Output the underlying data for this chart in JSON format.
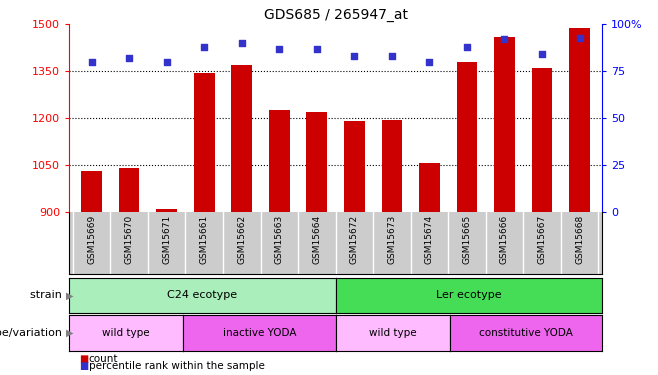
{
  "title": "GDS685 / 265947_at",
  "samples": [
    "GSM15669",
    "GSM15670",
    "GSM15671",
    "GSM15661",
    "GSM15662",
    "GSM15663",
    "GSM15664",
    "GSM15672",
    "GSM15673",
    "GSM15674",
    "GSM15665",
    "GSM15666",
    "GSM15667",
    "GSM15668"
  ],
  "counts": [
    1030,
    1040,
    910,
    1345,
    1370,
    1225,
    1220,
    1190,
    1195,
    1055,
    1380,
    1460,
    1360,
    1490
  ],
  "percentile_ranks": [
    80,
    82,
    80,
    88,
    90,
    87,
    87,
    83,
    83,
    80,
    88,
    92,
    84,
    93
  ],
  "ymin": 900,
  "ymax": 1500,
  "yticks_left": [
    900,
    1050,
    1200,
    1350,
    1500
  ],
  "yticks_right_vals": [
    0,
    25,
    50,
    75,
    100
  ],
  "yticks_right_labels": [
    "0",
    "25",
    "50",
    "75",
    "100%"
  ],
  "bar_color": "#cc0000",
  "dot_color": "#3333cc",
  "strain_groups": [
    {
      "label": "C24 ecotype",
      "start": 0,
      "end": 7,
      "color": "#aaeebb"
    },
    {
      "label": "Ler ecotype",
      "start": 7,
      "end": 14,
      "color": "#44dd55"
    }
  ],
  "genotype_groups": [
    {
      "label": "wild type",
      "start": 0,
      "end": 3,
      "color": "#ffbbff"
    },
    {
      "label": "inactive YODA",
      "start": 3,
      "end": 7,
      "color": "#ee66ee"
    },
    {
      "label": "wild type",
      "start": 7,
      "end": 10,
      "color": "#ffbbff"
    },
    {
      "label": "constitutive YODA",
      "start": 10,
      "end": 14,
      "color": "#ee66ee"
    }
  ],
  "strain_label": "strain",
  "genotype_label": "genotype/variation",
  "legend_count_label": "count",
  "legend_percentile_label": "percentile rank within the sample",
  "bar_width": 0.55,
  "xtick_bg_color": "#cccccc"
}
